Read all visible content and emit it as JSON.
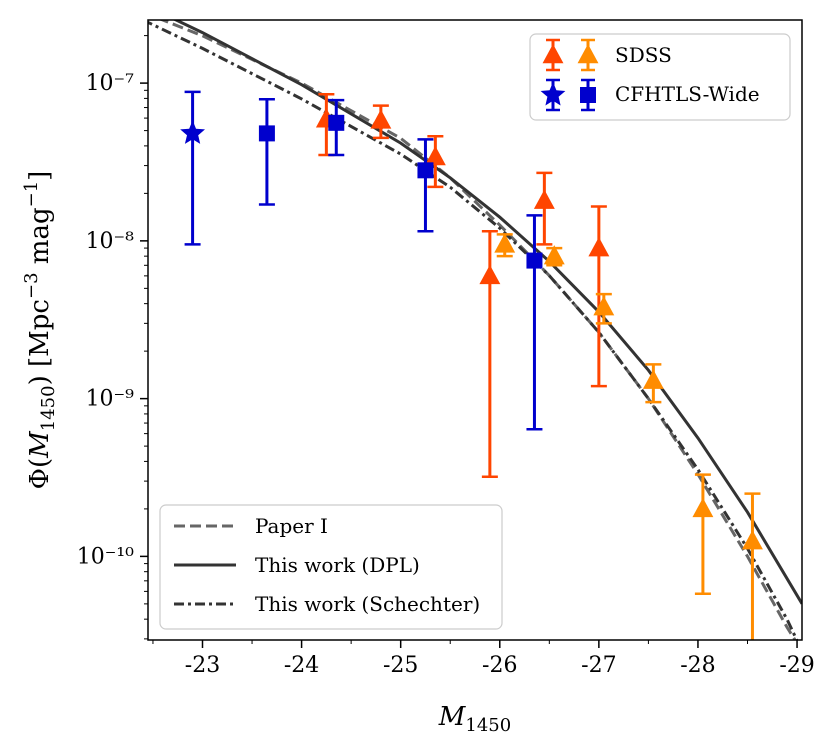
{
  "chart_data": {
    "type": "scatter",
    "xlabel": "M1450",
    "ylabel": "Φ(M1450)   [Mpc⁻³ mag⁻¹]",
    "xlim": [
      -22.45,
      -29.05
    ],
    "ylim_log10": [
      -10.53,
      -6.6
    ],
    "yscale": "log",
    "x_ticks": [
      -23,
      -24,
      -25,
      -26,
      -27,
      -28,
      -29
    ],
    "x_tick_labels": [
      "-23",
      "-24",
      "-25",
      "-26",
      "-27",
      "-28",
      "-29"
    ],
    "y_ticks_log10": [
      -7,
      -8,
      -9,
      -10
    ],
    "y_tick_labels": [
      "10⁻⁷",
      "10⁻⁸",
      "10⁻⁹",
      "10⁻¹⁰"
    ],
    "grid": false,
    "legend_top": {
      "placement": "top-right",
      "entries": [
        {
          "label": "SDSS",
          "markers": [
            "triangle-red",
            "triangle-orange"
          ]
        },
        {
          "label": "CFHTLS-Wide",
          "markers": [
            "star-blue",
            "square-blue"
          ]
        }
      ]
    },
    "legend_bottom": {
      "placement": "bottom-left",
      "entries": [
        {
          "label": "Paper I",
          "style": "dashed"
        },
        {
          "label": "This work (DPL)",
          "style": "solid"
        },
        {
          "label": "This work (Schechter)",
          "style": "dashdot"
        }
      ]
    },
    "colors": {
      "sdss_red": "#ff4500",
      "sdss_orange": "#ff8c00",
      "cfhtls": "#0000cd",
      "paper1": "#666666",
      "dpl": "#333333",
      "schechter": "#333333"
    },
    "series": [
      {
        "name": "SDSS",
        "marker": "triangle",
        "color_key": "sdss_red",
        "points": [
          {
            "x": -24.25,
            "y": 5.9e-08,
            "ylo": 3.5e-08,
            "yhi": 8.5e-08
          },
          {
            "x": -24.8,
            "y": 5.8e-08,
            "ylo": 4.5e-08,
            "yhi": 7.2e-08
          },
          {
            "x": -25.35,
            "y": 3.4e-08,
            "ylo": 2.2e-08,
            "yhi": 4.6e-08
          },
          {
            "x": -25.9,
            "y": 6e-09,
            "ylo": 3.2e-10,
            "yhi": 1.15e-08
          },
          {
            "x": -26.45,
            "y": 1.8e-08,
            "ylo": 9.5e-09,
            "yhi": 2.7e-08
          },
          {
            "x": -27.0,
            "y": 9e-09,
            "ylo": 1.2e-09,
            "yhi": 1.65e-08
          }
        ]
      },
      {
        "name": "SDSS",
        "marker": "triangle",
        "color_key": "sdss_orange",
        "points": [
          {
            "x": -26.05,
            "y": 9.5e-09,
            "ylo": 8e-09,
            "yhi": 1.1e-08
          },
          {
            "x": -26.55,
            "y": 8e-09,
            "ylo": 7e-09,
            "yhi": 9e-09
          },
          {
            "x": -27.05,
            "y": 3.8e-09,
            "ylo": 3e-09,
            "yhi": 4.6e-09
          },
          {
            "x": -27.55,
            "y": 1.3e-09,
            "ylo": 9.5e-10,
            "yhi": 1.65e-09
          },
          {
            "x": -28.05,
            "y": 2e-10,
            "ylo": 5.8e-11,
            "yhi": 3.3e-10
          },
          {
            "x": -28.55,
            "y": 1.25e-10,
            "ylo": 2e-11,
            "yhi": 2.5e-10
          }
        ]
      },
      {
        "name": "CFHTLS-Wide",
        "marker": "star",
        "color_key": "cfhtls",
        "points": [
          {
            "x": -22.9,
            "y": 4.8e-08,
            "ylo": 9.5e-09,
            "yhi": 8.8e-08
          }
        ]
      },
      {
        "name": "CFHTLS-Wide",
        "marker": "square",
        "color_key": "cfhtls",
        "points": [
          {
            "x": -23.65,
            "y": 4.8e-08,
            "ylo": 1.7e-08,
            "yhi": 7.9e-08
          },
          {
            "x": -24.35,
            "y": 5.6e-08,
            "ylo": 3.5e-08,
            "yhi": 7.8e-08
          },
          {
            "x": -25.25,
            "y": 2.8e-08,
            "ylo": 1.15e-08,
            "yhi": 4.4e-08
          },
          {
            "x": -26.35,
            "y": 7.5e-09,
            "ylo": 6.4e-10,
            "yhi": 1.45e-08
          }
        ]
      }
    ],
    "curves": [
      {
        "name": "Paper I",
        "style": "dashed",
        "color_key": "paper1",
        "points": [
          [
            -22.4,
            -6.55
          ],
          [
            -23.0,
            -6.7
          ],
          [
            -24.0,
            -7.0
          ],
          [
            -25.0,
            -7.35
          ],
          [
            -25.5,
            -7.6
          ],
          [
            -26.0,
            -7.9
          ],
          [
            -26.5,
            -8.22
          ],
          [
            -27.0,
            -8.58
          ],
          [
            -27.5,
            -9.0
          ],
          [
            -28.0,
            -9.48
          ],
          [
            -28.5,
            -10.0
          ],
          [
            -28.9,
            -10.45
          ],
          [
            -29.05,
            -10.6
          ]
        ]
      },
      {
        "name": "This work (DPL)",
        "style": "solid",
        "color_key": "dpl",
        "points": [
          [
            -22.4,
            -6.5
          ],
          [
            -23.0,
            -6.68
          ],
          [
            -24.0,
            -7.01
          ],
          [
            -25.0,
            -7.38
          ],
          [
            -25.5,
            -7.6
          ],
          [
            -26.0,
            -7.85
          ],
          [
            -26.5,
            -8.13
          ],
          [
            -27.0,
            -8.45
          ],
          [
            -27.5,
            -8.82
          ],
          [
            -28.0,
            -9.25
          ],
          [
            -28.5,
            -9.72
          ],
          [
            -29.05,
            -10.3
          ]
        ]
      },
      {
        "name": "This work (Schechter)",
        "style": "dashdot",
        "color_key": "schechter",
        "points": [
          [
            -22.4,
            -6.6
          ],
          [
            -23.0,
            -6.78
          ],
          [
            -24.0,
            -7.1
          ],
          [
            -25.0,
            -7.45
          ],
          [
            -25.5,
            -7.66
          ],
          [
            -26.0,
            -7.92
          ],
          [
            -26.5,
            -8.22
          ],
          [
            -27.0,
            -8.58
          ],
          [
            -27.5,
            -9.0
          ],
          [
            -28.0,
            -9.45
          ],
          [
            -28.5,
            -9.95
          ],
          [
            -28.9,
            -10.4
          ],
          [
            -29.05,
            -10.6
          ]
        ]
      }
    ]
  }
}
